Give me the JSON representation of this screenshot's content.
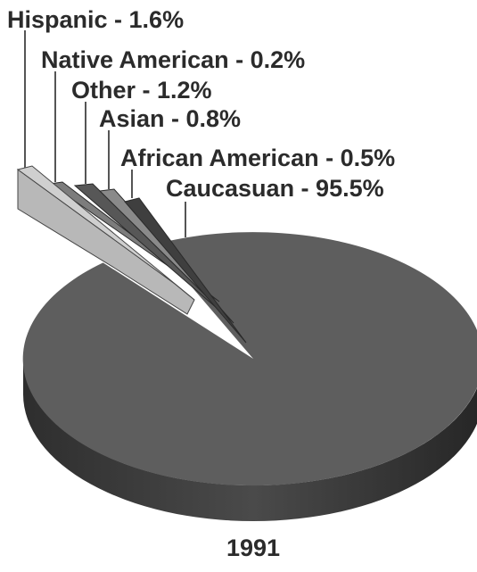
{
  "chart_data": {
    "type": "pie",
    "title": "",
    "caption": "1991",
    "legend": "none",
    "style": "3d-exploded",
    "slices": [
      {
        "label": "Hispanic - 1.6%",
        "category": "Hispanic",
        "value": 1.6,
        "color": "#b8b8b8"
      },
      {
        "label": "Native American - 0.2%",
        "category": "Native American",
        "value": 0.2,
        "color": "#7c7c7c"
      },
      {
        "label": "Other - 1.2%",
        "category": "Other",
        "value": 1.2,
        "color": "#575757"
      },
      {
        "label": "Asian - 0.8%",
        "category": "Asian",
        "value": 0.8,
        "color": "#8a8a8a"
      },
      {
        "label": "African American - 0.5%",
        "category": "African American",
        "value": 0.5,
        "color": "#3f3f3f"
      },
      {
        "label": "Caucasuan - 95.5%",
        "category": "Caucasuan",
        "value": 95.5,
        "color": "#5e5e5e"
      }
    ]
  }
}
